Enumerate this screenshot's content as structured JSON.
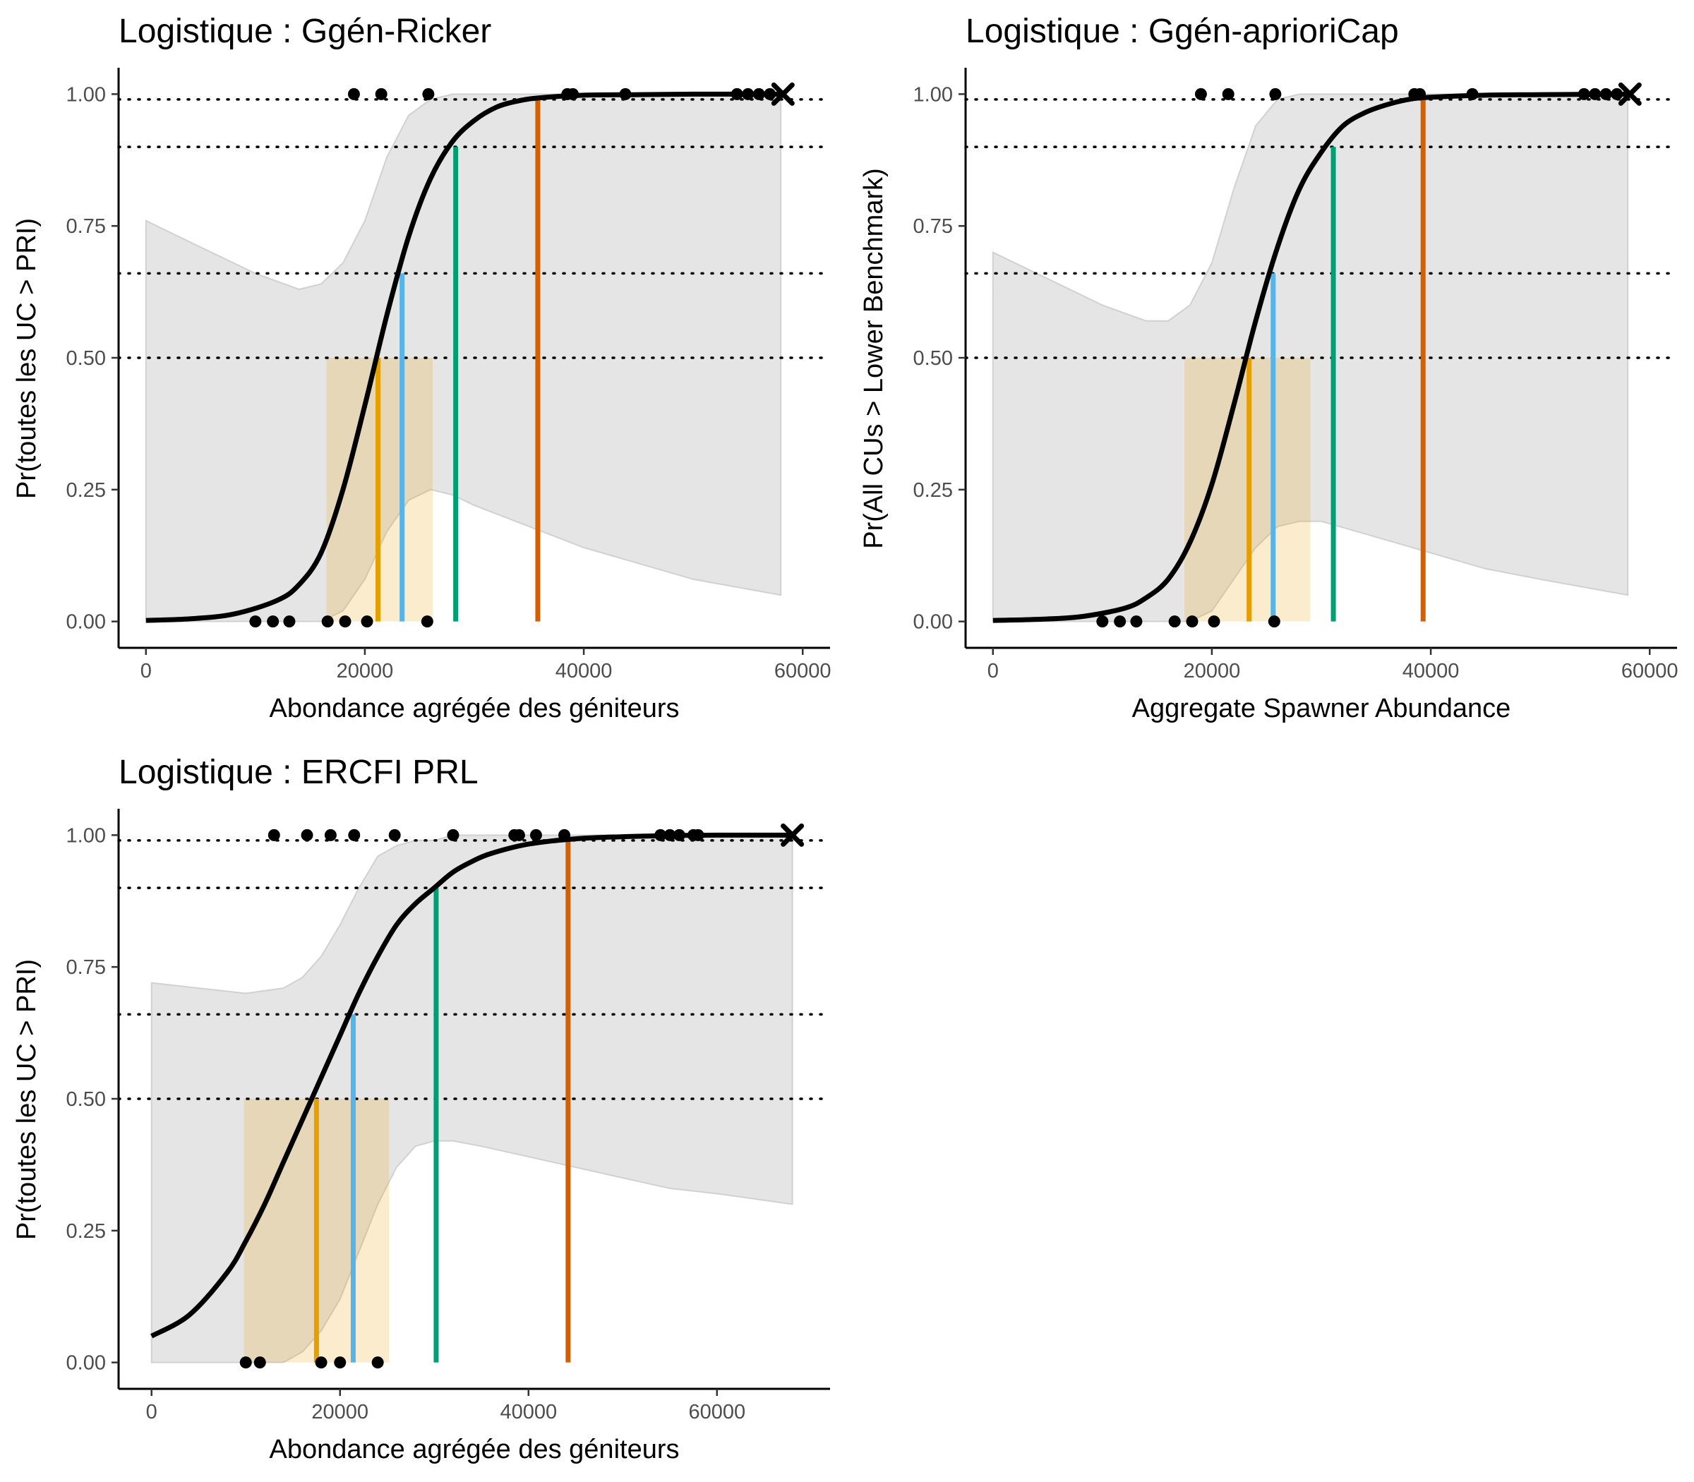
{
  "chart_data": [
    {
      "type": "line",
      "title": "Logistique : Ggén-Ricker",
      "xlabel": "Abondance agrégée des géniteurs",
      "ylabel": "Pr(toutes les UC > PRI)",
      "xlim": [
        -2500,
        62500
      ],
      "ylim": [
        -0.05,
        1.05
      ],
      "x_ticks": [
        0,
        20000,
        40000,
        60000
      ],
      "x_tick_labels": [
        "0",
        "20000",
        "40000",
        "60000"
      ],
      "y_ticks": [
        0,
        0.25,
        0.5,
        0.75,
        1
      ],
      "y_tick_labels": [
        "0.00",
        "0.25",
        "0.50",
        "0.75",
        "1.00"
      ],
      "grid": false,
      "reference_lines_y": [
        0.5,
        0.66,
        0.9,
        0.99
      ],
      "curve": {
        "x": [
          0,
          4000,
          8000,
          12000,
          14000,
          16000,
          18000,
          20000,
          22000,
          24000,
          26000,
          28000,
          30000,
          32000,
          34000,
          36000,
          40000,
          45000,
          50000,
          58000
        ],
        "y": [
          0.002,
          0.005,
          0.014,
          0.04,
          0.07,
          0.13,
          0.25,
          0.41,
          0.58,
          0.73,
          0.84,
          0.91,
          0.95,
          0.975,
          0.987,
          0.993,
          0.998,
          0.999,
          1.0,
          1.0
        ]
      },
      "ci_band": {
        "x": [
          0,
          5000,
          10000,
          14000,
          16000,
          18000,
          20000,
          22000,
          24000,
          26000,
          28000,
          30000,
          35000,
          40000,
          45000,
          50000,
          58000
        ],
        "lower": [
          0,
          0,
          0,
          0,
          0,
          0.02,
          0.08,
          0.17,
          0.23,
          0.25,
          0.24,
          0.22,
          0.18,
          0.14,
          0.11,
          0.08,
          0.05
        ],
        "upper": [
          0.76,
          0.71,
          0.66,
          0.63,
          0.64,
          0.68,
          0.76,
          0.88,
          0.96,
          0.99,
          1,
          1,
          1,
          1,
          1,
          1,
          1
        ]
      },
      "ci_rect": {
        "x0": 16500,
        "x1": 26200,
        "y0": 0,
        "y1": 0.5,
        "color": "#E69F00"
      },
      "benchmarks": [
        {
          "x": 21200,
          "y": 0.5,
          "color": "#E69F00"
        },
        {
          "x": 23400,
          "y": 0.66,
          "color": "#56B4E9"
        },
        {
          "x": 28300,
          "y": 0.9,
          "color": "#009E73"
        },
        {
          "x": 35800,
          "y": 0.99,
          "color": "#D55E00"
        }
      ],
      "obs_points": [
        {
          "x": 19000,
          "y": 1
        },
        {
          "x": 21500,
          "y": 1
        },
        {
          "x": 25800,
          "y": 1
        },
        {
          "x": 38500,
          "y": 1
        },
        {
          "x": 39000,
          "y": 1
        },
        {
          "x": 43800,
          "y": 1
        },
        {
          "x": 54000,
          "y": 1
        },
        {
          "x": 55000,
          "y": 1
        },
        {
          "x": 56000,
          "y": 1
        },
        {
          "x": 57000,
          "y": 1
        },
        {
          "x": 10000,
          "y": 0
        },
        {
          "x": 11600,
          "y": 0
        },
        {
          "x": 13100,
          "y": 0
        },
        {
          "x": 16600,
          "y": 0
        },
        {
          "x": 18200,
          "y": 0
        },
        {
          "x": 20200,
          "y": 0
        },
        {
          "x": 25700,
          "y": 0
        }
      ],
      "cross_point": {
        "x": 58200,
        "y": 1
      }
    },
    {
      "type": "line",
      "title": "Logistique : Ggén-aprioriCap",
      "xlabel": "Aggregate Spawner Abundance",
      "ylabel": "Pr(All CUs > Lower Benchmark)",
      "xlim": [
        -2500,
        62500
      ],
      "ylim": [
        -0.05,
        1.05
      ],
      "x_ticks": [
        0,
        20000,
        40000,
        60000
      ],
      "x_tick_labels": [
        "0",
        "20000",
        "40000",
        "60000"
      ],
      "y_ticks": [
        0,
        0.25,
        0.5,
        0.75,
        1
      ],
      "y_tick_labels": [
        "0.00",
        "0.25",
        "0.50",
        "0.75",
        "1.00"
      ],
      "grid": false,
      "reference_lines_y": [
        0.5,
        0.66,
        0.9,
        0.99
      ],
      "curve": {
        "x": [
          0,
          4000,
          8000,
          12000,
          14000,
          16000,
          18000,
          20000,
          22000,
          24000,
          26000,
          28000,
          30000,
          32000,
          34000,
          36000,
          38000,
          40000,
          45000,
          50000,
          58000
        ],
        "y": [
          0.002,
          0.004,
          0.009,
          0.025,
          0.045,
          0.08,
          0.15,
          0.26,
          0.41,
          0.57,
          0.71,
          0.82,
          0.89,
          0.94,
          0.965,
          0.98,
          0.99,
          0.994,
          0.998,
          0.999,
          1.0
        ]
      },
      "ci_band": {
        "x": [
          0,
          5000,
          10000,
          14000,
          16000,
          18000,
          20000,
          22000,
          24000,
          26000,
          28000,
          30000,
          35000,
          40000,
          45000,
          50000,
          58000
        ],
        "lower": [
          0,
          0,
          0,
          0,
          0,
          0,
          0.02,
          0.08,
          0.14,
          0.18,
          0.19,
          0.19,
          0.16,
          0.13,
          0.1,
          0.08,
          0.05
        ],
        "upper": [
          0.7,
          0.65,
          0.6,
          0.57,
          0.57,
          0.6,
          0.68,
          0.82,
          0.94,
          0.99,
          1,
          1,
          1,
          1,
          1,
          1,
          1
        ]
      },
      "ci_rect": {
        "x0": 17500,
        "x1": 29000,
        "y0": 0,
        "y1": 0.5,
        "color": "#E69F00"
      },
      "benchmarks": [
        {
          "x": 23400,
          "y": 0.5,
          "color": "#E69F00"
        },
        {
          "x": 25600,
          "y": 0.66,
          "color": "#56B4E9"
        },
        {
          "x": 31100,
          "y": 0.9,
          "color": "#009E73"
        },
        {
          "x": 39300,
          "y": 0.99,
          "color": "#D55E00"
        }
      ],
      "obs_points": [
        {
          "x": 19000,
          "y": 1
        },
        {
          "x": 21500,
          "y": 1
        },
        {
          "x": 25800,
          "y": 1
        },
        {
          "x": 38500,
          "y": 1
        },
        {
          "x": 39000,
          "y": 1
        },
        {
          "x": 43800,
          "y": 1
        },
        {
          "x": 54000,
          "y": 1
        },
        {
          "x": 55000,
          "y": 1
        },
        {
          "x": 56000,
          "y": 1
        },
        {
          "x": 57000,
          "y": 1
        },
        {
          "x": 10000,
          "y": 0
        },
        {
          "x": 11600,
          "y": 0
        },
        {
          "x": 13100,
          "y": 0
        },
        {
          "x": 16600,
          "y": 0
        },
        {
          "x": 18200,
          "y": 0
        },
        {
          "x": 20200,
          "y": 0
        },
        {
          "x": 25700,
          "y": 0
        }
      ],
      "cross_point": {
        "x": 58200,
        "y": 1
      }
    },
    {
      "type": "line",
      "title": "Logistique : ERCFI PRL",
      "xlabel": "Abondance agrégée des géniteurs",
      "ylabel": "Pr(toutes les UC > PRI)",
      "xlim": [
        -3500,
        72000
      ],
      "ylim": [
        -0.05,
        1.05
      ],
      "x_ticks": [
        0,
        20000,
        40000,
        60000
      ],
      "x_tick_labels": [
        "0",
        "20000",
        "40000",
        "60000"
      ],
      "y_ticks": [
        0,
        0.25,
        0.5,
        0.75,
        1
      ],
      "y_tick_labels": [
        "0.00",
        "0.25",
        "0.50",
        "0.75",
        "1.00"
      ],
      "grid": false,
      "reference_lines_y": [
        0.5,
        0.66,
        0.9,
        0.99
      ],
      "curve": {
        "x": [
          0,
          4000,
          8000,
          10000,
          12000,
          14000,
          16000,
          18000,
          20000,
          22000,
          24000,
          26000,
          28000,
          30000,
          32000,
          34000,
          36000,
          40000,
          45000,
          50000,
          55000,
          60000,
          68000
        ],
        "y": [
          0.05,
          0.09,
          0.17,
          0.23,
          0.3,
          0.38,
          0.46,
          0.54,
          0.62,
          0.7,
          0.77,
          0.83,
          0.87,
          0.9,
          0.93,
          0.95,
          0.965,
          0.983,
          0.993,
          0.997,
          0.999,
          1.0,
          1.0
        ]
      },
      "ci_band": {
        "x": [
          0,
          5000,
          10000,
          14000,
          16000,
          18000,
          20000,
          22000,
          24000,
          26000,
          28000,
          30000,
          32000,
          35000,
          40000,
          45000,
          50000,
          55000,
          60000,
          68000
        ],
        "lower": [
          0,
          0,
          0,
          0,
          0.02,
          0.06,
          0.12,
          0.21,
          0.3,
          0.37,
          0.41,
          0.42,
          0.42,
          0.41,
          0.39,
          0.37,
          0.35,
          0.33,
          0.32,
          0.3
        ],
        "upper": [
          0.72,
          0.71,
          0.7,
          0.71,
          0.73,
          0.77,
          0.83,
          0.9,
          0.96,
          0.98,
          0.99,
          0.99,
          1,
          1,
          1,
          1,
          1,
          1,
          1,
          1
        ]
      },
      "ci_rect": {
        "x0": 9800,
        "x1": 25200,
        "y0": 0,
        "y1": 0.5,
        "color": "#E69F00"
      },
      "benchmarks": [
        {
          "x": 17500,
          "y": 0.5,
          "color": "#E69F00"
        },
        {
          "x": 21400,
          "y": 0.66,
          "color": "#56B4E9"
        },
        {
          "x": 30200,
          "y": 0.9,
          "color": "#009E73"
        },
        {
          "x": 44200,
          "y": 0.99,
          "color": "#D55E00"
        }
      ],
      "obs_points": [
        {
          "x": 13000,
          "y": 1
        },
        {
          "x": 16500,
          "y": 1
        },
        {
          "x": 19000,
          "y": 1
        },
        {
          "x": 21500,
          "y": 1
        },
        {
          "x": 25800,
          "y": 1
        },
        {
          "x": 32000,
          "y": 1
        },
        {
          "x": 38500,
          "y": 1
        },
        {
          "x": 39000,
          "y": 1
        },
        {
          "x": 40800,
          "y": 1
        },
        {
          "x": 43800,
          "y": 1
        },
        {
          "x": 54000,
          "y": 1
        },
        {
          "x": 55000,
          "y": 1
        },
        {
          "x": 56000,
          "y": 1
        },
        {
          "x": 57500,
          "y": 1
        },
        {
          "x": 58000,
          "y": 1
        },
        {
          "x": 10000,
          "y": 0
        },
        {
          "x": 11500,
          "y": 0
        },
        {
          "x": 18000,
          "y": 0
        },
        {
          "x": 20000,
          "y": 0
        },
        {
          "x": 24000,
          "y": 0
        }
      ],
      "cross_point": {
        "x": 68000,
        "y": 1
      }
    }
  ]
}
